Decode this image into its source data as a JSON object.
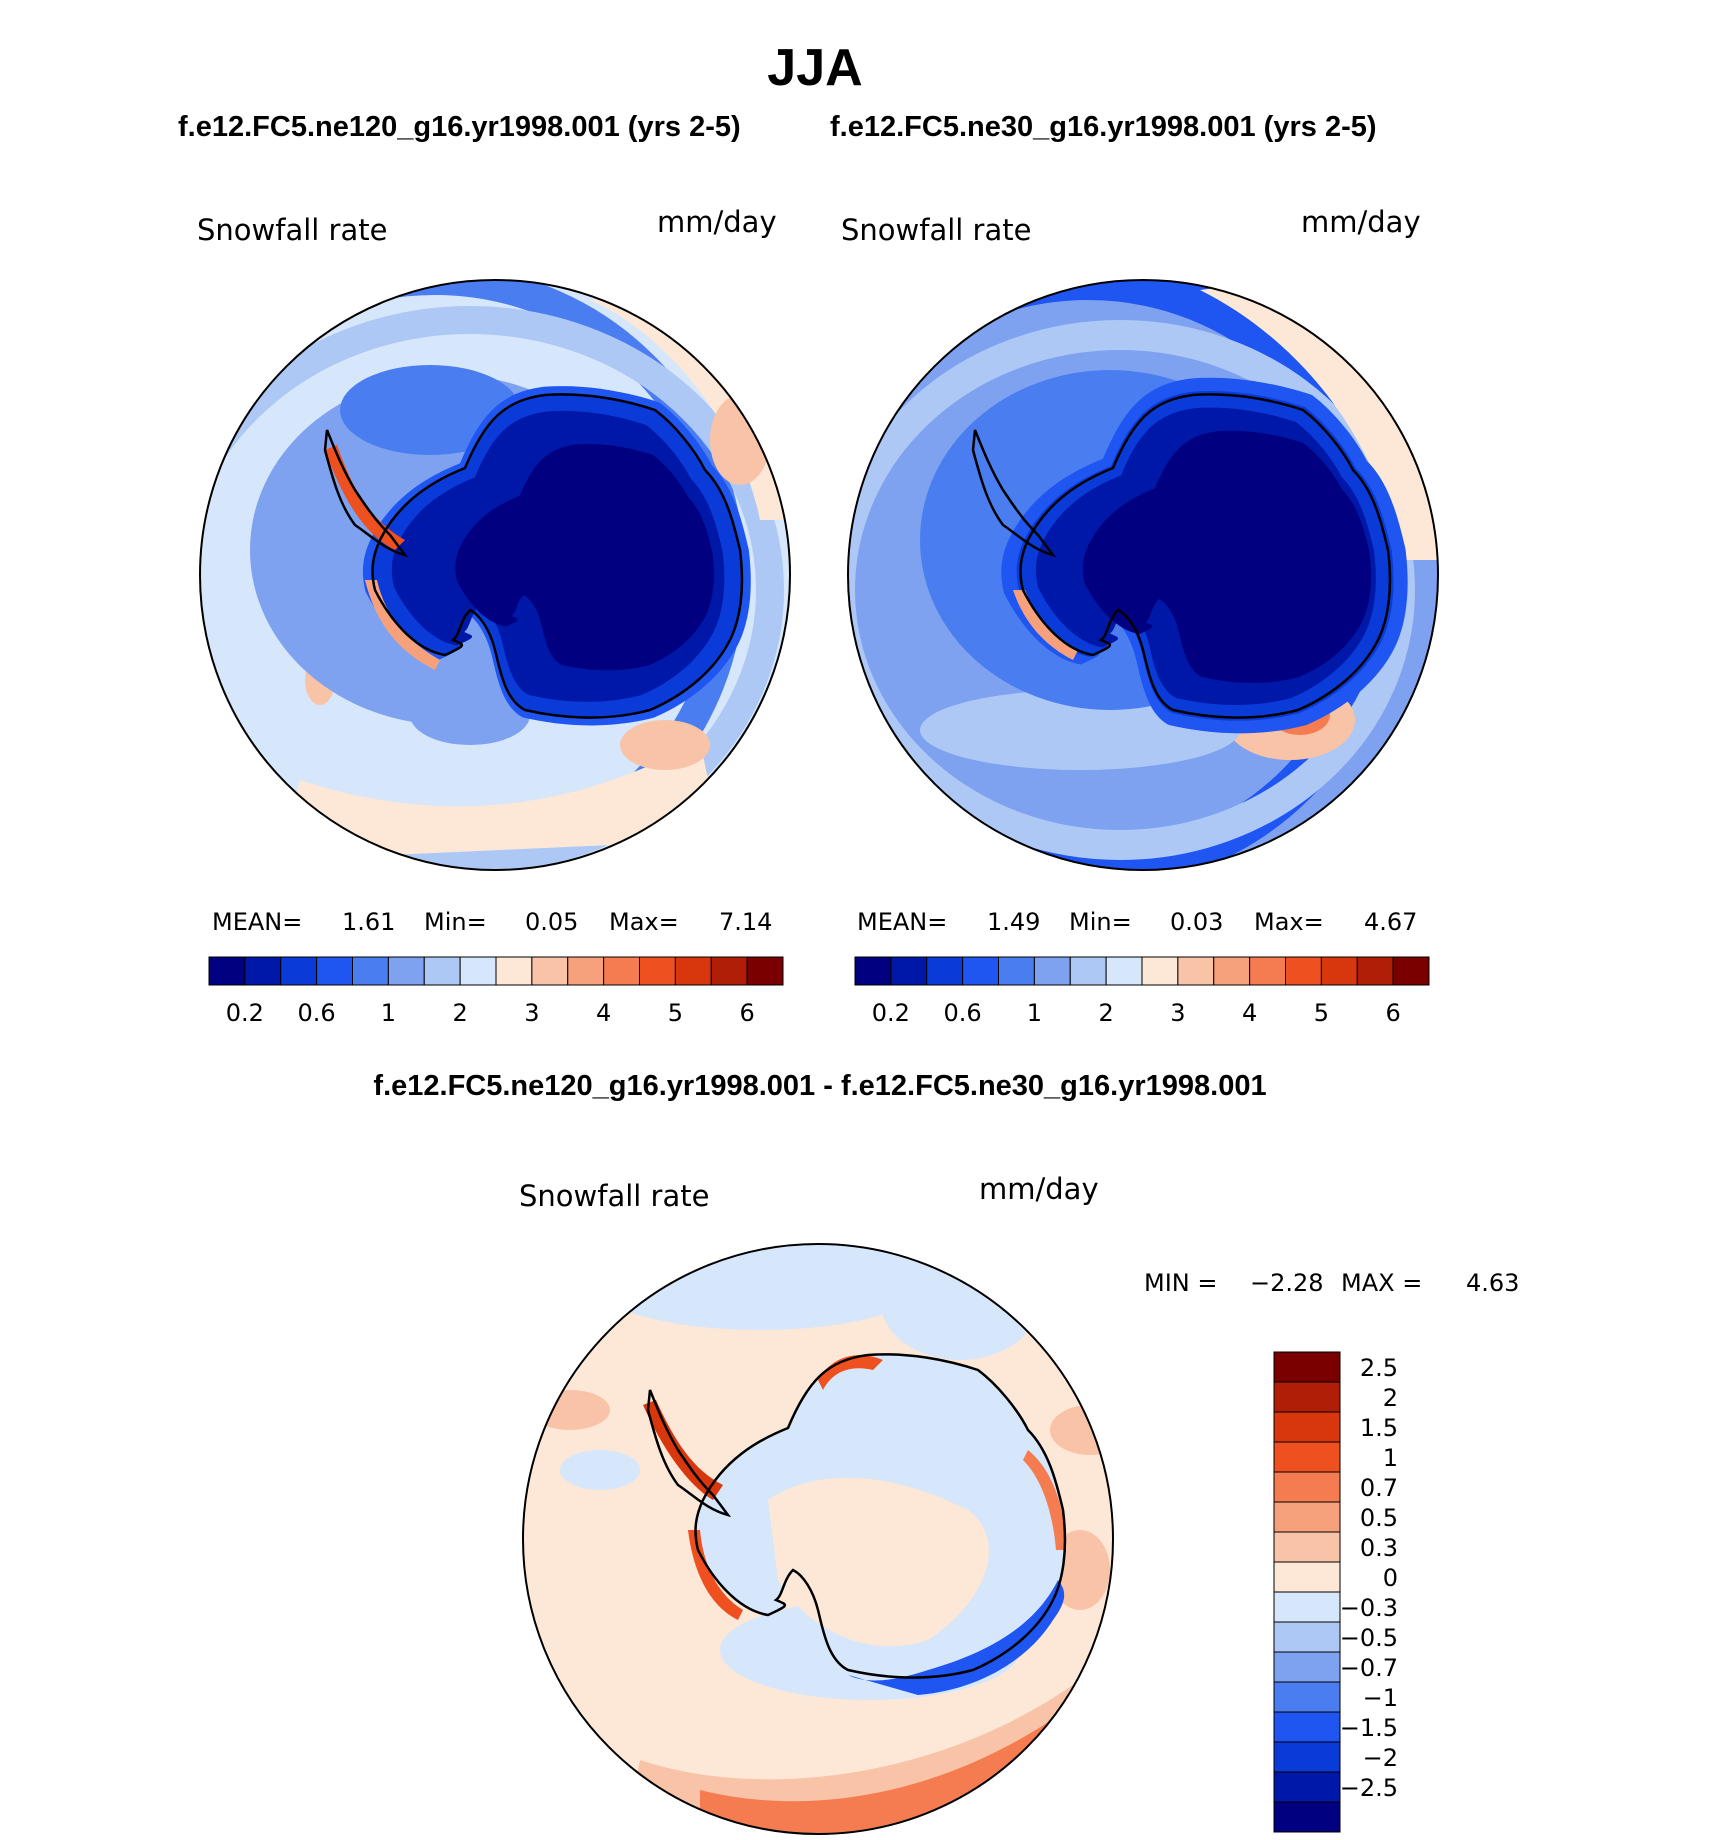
{
  "figure": {
    "season_title": "JJA",
    "panel_subtitles": [
      "f.e12.FC5.ne120_g16.yr1998.001 (yrs 2-5)",
      "f.e12.FC5.ne30_g16.yr1998.001 (yrs 2-5)"
    ],
    "diff_subtitle": "f.e12.FC5.ne120_g16.yr1998.001 - f.e12.FC5.ne30_g16.yr1998.001"
  },
  "colors": {
    "sequential_palette": [
      "#000080",
      "#0018a8",
      "#0a3ad8",
      "#1f55f0",
      "#4a7ef0",
      "#7ea2f0",
      "#aec8f5",
      "#d6e6fb",
      "#fde8d8",
      "#f9c3a8",
      "#f6a07c",
      "#f47c50",
      "#ef5020",
      "#d8360c",
      "#b01e08",
      "#7a0000"
    ],
    "diverging_palette": [
      "#000080",
      "#0018a8",
      "#0a3ad8",
      "#1f55f0",
      "#4a7ef0",
      "#7ea2f0",
      "#aec8f5",
      "#d6e6fb",
      "#fde8d8",
      "#f9c3a8",
      "#f6a07c",
      "#f47c50",
      "#ef5020",
      "#d8360c",
      "#b01e08",
      "#7a0000"
    ],
    "coastline": "#000000"
  },
  "chart_data": [
    {
      "type": "heatmap",
      "projection": "south-polar-stereographic",
      "variable_label": "Snowfall rate",
      "units": "mm/day",
      "stats": {
        "mean_label": "MEAN=",
        "mean": "1.61",
        "min_label": "Min=",
        "min": "0.05",
        "max_label": "Max=",
        "max": "7.14"
      },
      "colorbar": {
        "orientation": "horizontal",
        "levels": [
          0.2,
          0.4,
          0.6,
          0.8,
          1,
          1.5,
          2,
          2.5,
          3,
          3.5,
          4,
          4.5,
          5,
          5.5,
          6
        ],
        "tick_labels": [
          "0.2",
          "0.6",
          "1",
          "2",
          "3",
          "4",
          "5",
          "6"
        ],
        "tick_level_index": [
          0,
          2,
          4,
          6,
          8,
          10,
          12,
          14
        ]
      }
    },
    {
      "type": "heatmap",
      "projection": "south-polar-stereographic",
      "variable_label": "Snowfall rate",
      "units": "mm/day",
      "stats": {
        "mean_label": "MEAN=",
        "mean": "1.49",
        "min_label": "Min=",
        "min": "0.03",
        "max_label": "Max=",
        "max": "4.67"
      },
      "colorbar": {
        "orientation": "horizontal",
        "levels": [
          0.2,
          0.4,
          0.6,
          0.8,
          1,
          1.5,
          2,
          2.5,
          3,
          3.5,
          4,
          4.5,
          5,
          5.5,
          6
        ],
        "tick_labels": [
          "0.2",
          "0.6",
          "1",
          "2",
          "3",
          "4",
          "5",
          "6"
        ],
        "tick_level_index": [
          0,
          2,
          4,
          6,
          8,
          10,
          12,
          14
        ]
      }
    },
    {
      "type": "heatmap",
      "projection": "south-polar-stereographic",
      "variable_label": "Snowfall rate",
      "units": "mm/day",
      "stats": {
        "min_label": "MIN =",
        "min": "−2.28",
        "max_label": "MAX =",
        "max": "4.63"
      },
      "colorbar": {
        "orientation": "vertical",
        "levels": [
          -2.5,
          -2,
          -1.5,
          -1,
          -0.7,
          -0.5,
          -0.3,
          0,
          0.3,
          0.5,
          0.7,
          1,
          1.5,
          2,
          2.5
        ],
        "tick_labels_top_to_bottom": [
          "2.5",
          "2",
          "1.5",
          "1",
          "0.7",
          "0.5",
          "0.3",
          "0",
          "−0.3",
          "−0.5",
          "−0.7",
          "−1",
          "−1.5",
          "−2",
          "−2.5"
        ]
      }
    }
  ]
}
